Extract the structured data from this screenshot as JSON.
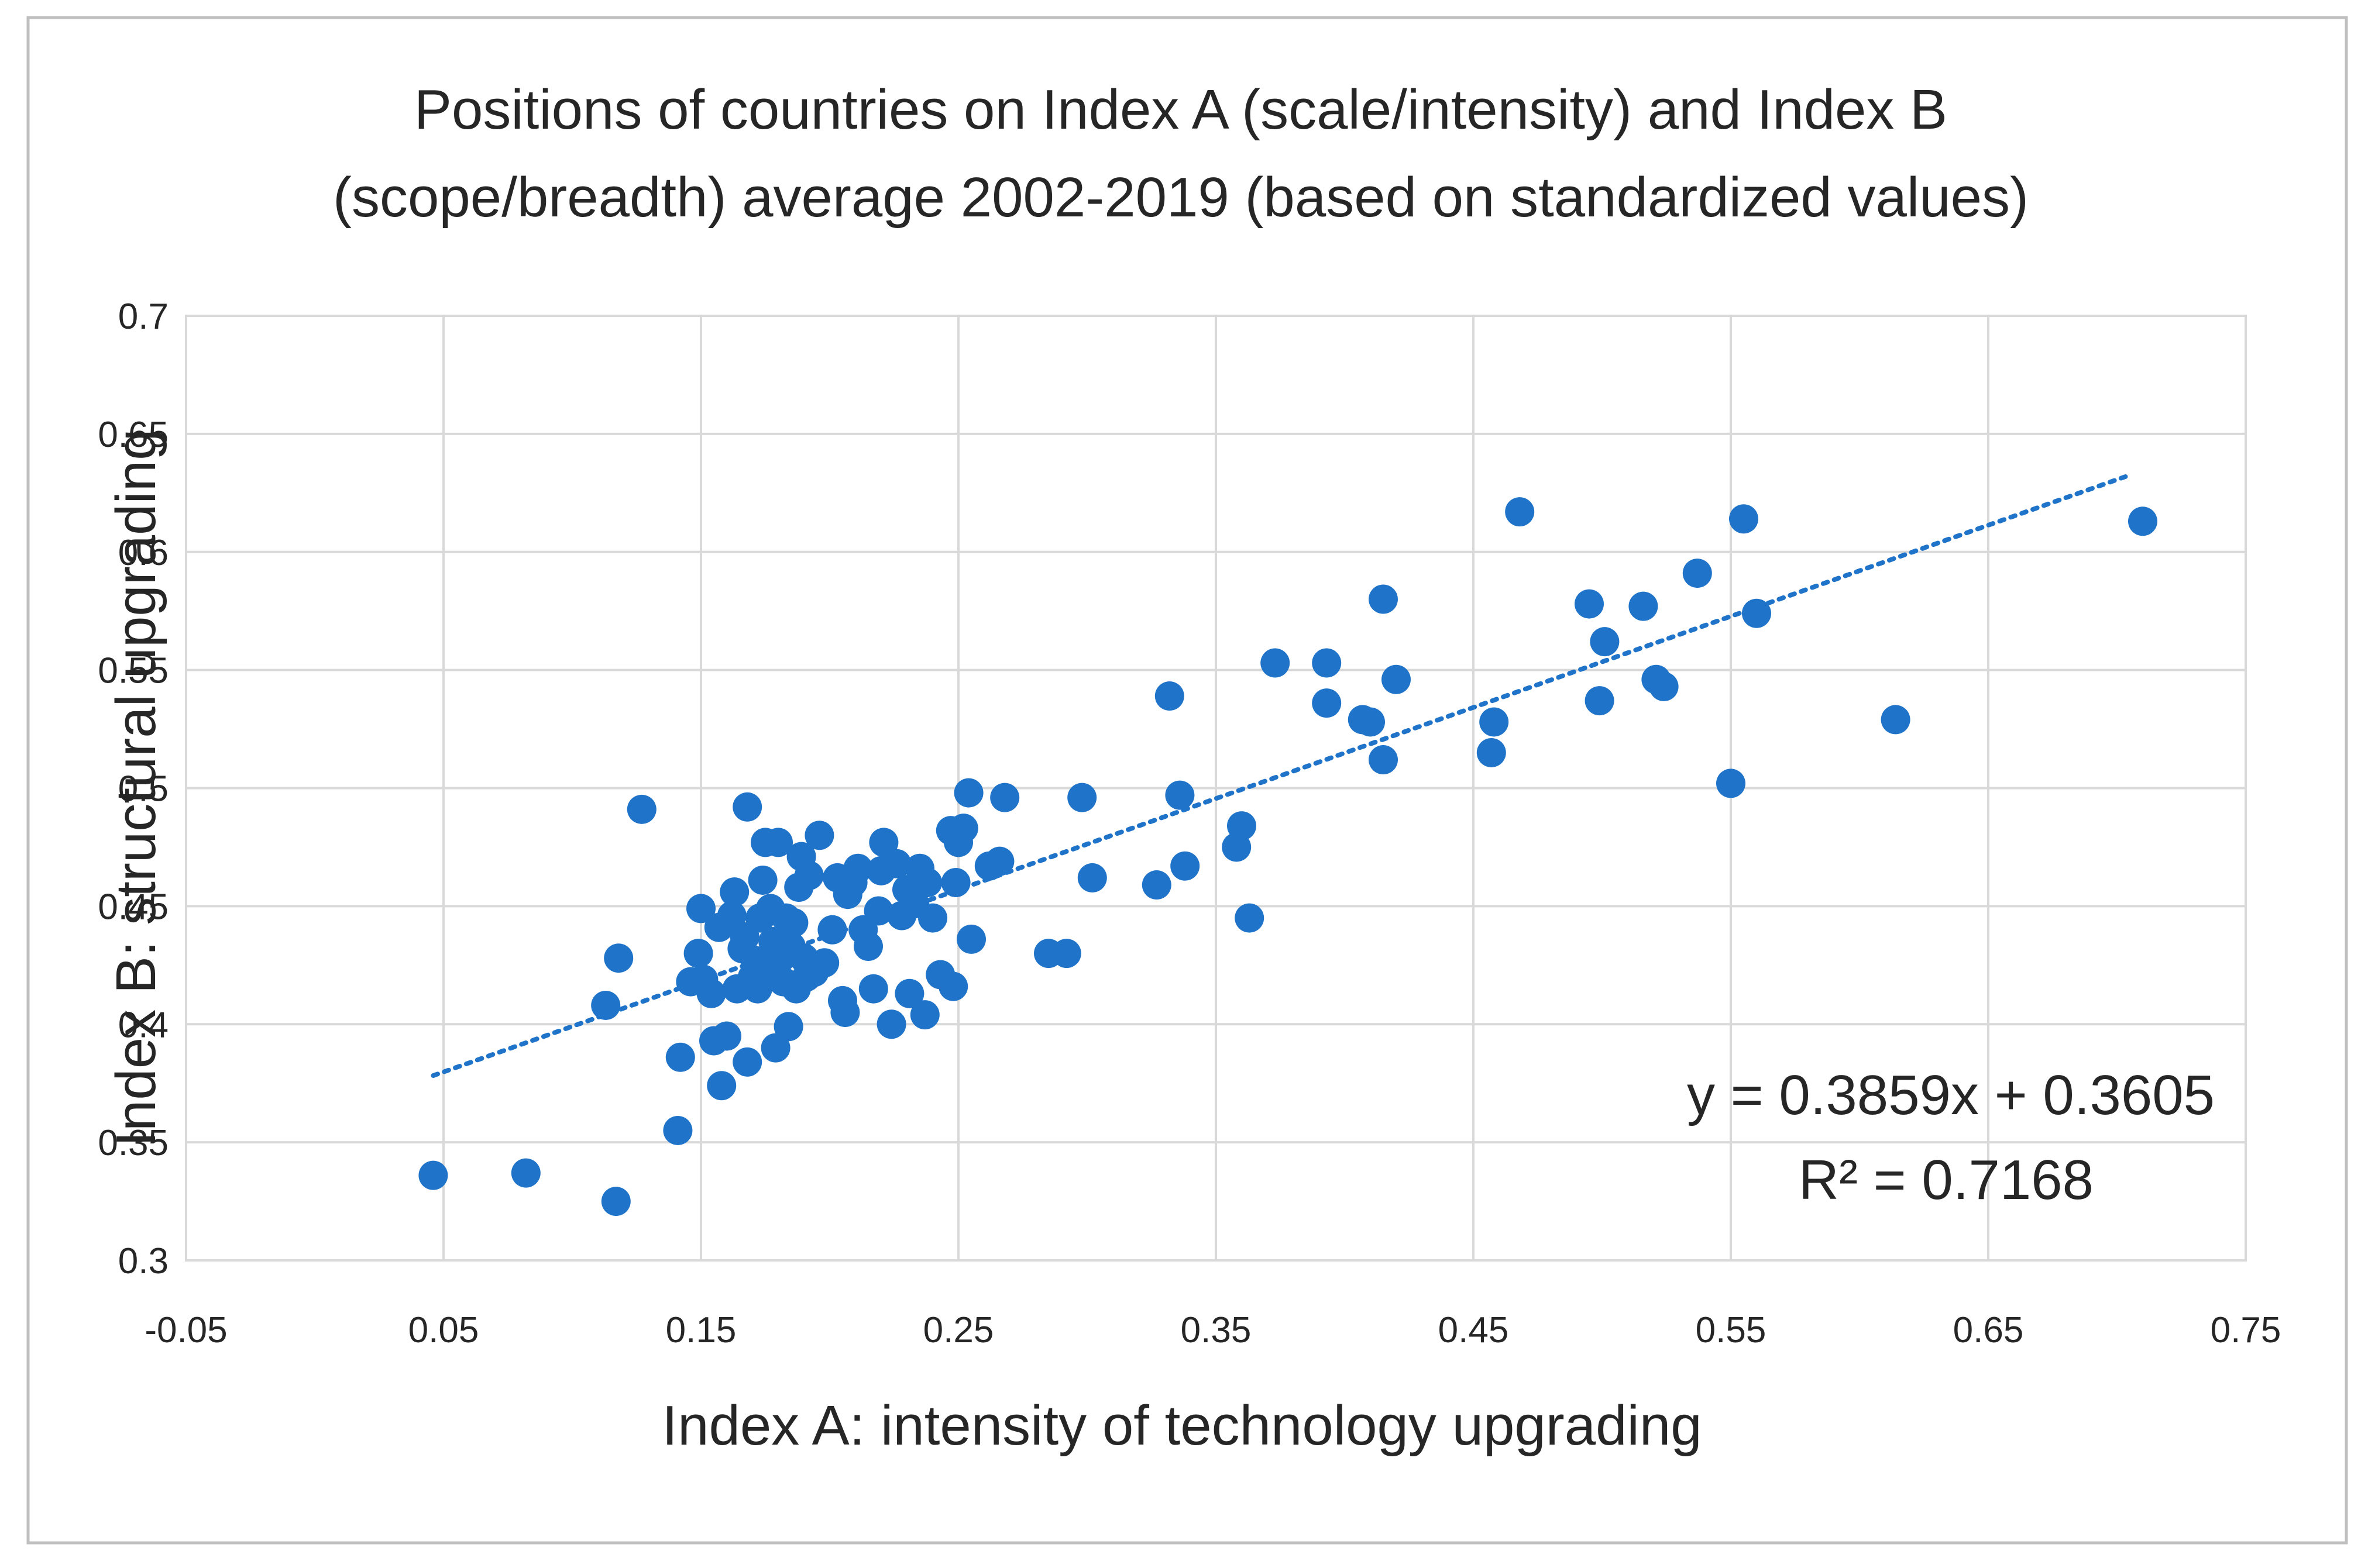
{
  "chart_data": {
    "type": "scatter",
    "title_line1": "Positions of countries on Index A (scale/intensity) and Index B",
    "title_line2": "(scope/breadth) average 2002-2019 (based on standardized values)",
    "xlabel": "Index  A: intensity of technology upgrading",
    "ylabel": "Index B: structural upgrading",
    "xlim": [
      -0.05,
      0.75
    ],
    "ylim": [
      0.3,
      0.7
    ],
    "x_ticks": [
      -0.05,
      0.05,
      0.15,
      0.25,
      0.35,
      0.45,
      0.55,
      0.65,
      0.75
    ],
    "x_tick_labels": [
      "-0.05",
      "0.05",
      "0.15",
      "0.25",
      "0.35",
      "0.45",
      "0.55",
      "0.65",
      "0.75"
    ],
    "y_ticks": [
      0.3,
      0.35,
      0.4,
      0.45,
      0.5,
      0.55,
      0.6,
      0.65,
      0.7
    ],
    "y_tick_labels": [
      "0.3",
      "0.35",
      "0.4",
      "0.45",
      "0.5",
      "0.55",
      "0.6",
      "0.65",
      "0.7"
    ],
    "grid": true,
    "series": [
      {
        "name": "Countries",
        "color": "#1f73c8",
        "points": [
          [
            0.046,
            0.336
          ],
          [
            0.082,
            0.337
          ],
          [
            0.117,
            0.325
          ],
          [
            0.113,
            0.408
          ],
          [
            0.118,
            0.428
          ],
          [
            0.127,
            0.491
          ],
          [
            0.141,
            0.355
          ],
          [
            0.142,
            0.386
          ],
          [
            0.146,
            0.418
          ],
          [
            0.149,
            0.43
          ],
          [
            0.15,
            0.449
          ],
          [
            0.151,
            0.419
          ],
          [
            0.154,
            0.413
          ],
          [
            0.155,
            0.393
          ],
          [
            0.157,
            0.441
          ],
          [
            0.158,
            0.374
          ],
          [
            0.16,
            0.395
          ],
          [
            0.162,
            0.446
          ],
          [
            0.163,
            0.456
          ],
          [
            0.164,
            0.415
          ],
          [
            0.166,
            0.432
          ],
          [
            0.167,
            0.437
          ],
          [
            0.168,
            0.384
          ],
          [
            0.168,
            0.492
          ],
          [
            0.17,
            0.42
          ],
          [
            0.171,
            0.427
          ],
          [
            0.172,
            0.415
          ],
          [
            0.173,
            0.445
          ],
          [
            0.174,
            0.461
          ],
          [
            0.175,
            0.477
          ],
          [
            0.176,
            0.421
          ],
          [
            0.177,
            0.449
          ],
          [
            0.178,
            0.435
          ],
          [
            0.179,
            0.39
          ],
          [
            0.18,
            0.477
          ],
          [
            0.181,
            0.428
          ],
          [
            0.182,
            0.418
          ],
          [
            0.183,
            0.445
          ],
          [
            0.184,
            0.399
          ],
          [
            0.185,
            0.433
          ],
          [
            0.186,
            0.443
          ],
          [
            0.187,
            0.415
          ],
          [
            0.188,
            0.458
          ],
          [
            0.189,
            0.471
          ],
          [
            0.19,
            0.428
          ],
          [
            0.191,
            0.42
          ],
          [
            0.192,
            0.463
          ],
          [
            0.194,
            0.422
          ],
          [
            0.196,
            0.48
          ],
          [
            0.198,
            0.426
          ],
          [
            0.201,
            0.44
          ],
          [
            0.203,
            0.462
          ],
          [
            0.205,
            0.41
          ],
          [
            0.206,
            0.405
          ],
          [
            0.207,
            0.455
          ],
          [
            0.209,
            0.46
          ],
          [
            0.211,
            0.466
          ],
          [
            0.213,
            0.44
          ],
          [
            0.215,
            0.433
          ],
          [
            0.217,
            0.415
          ],
          [
            0.219,
            0.448
          ],
          [
            0.22,
            0.465
          ],
          [
            0.221,
            0.477
          ],
          [
            0.224,
            0.4
          ],
          [
            0.226,
            0.468
          ],
          [
            0.228,
            0.446
          ],
          [
            0.23,
            0.457
          ],
          [
            0.231,
            0.413
          ],
          [
            0.233,
            0.451
          ],
          [
            0.235,
            0.466
          ],
          [
            0.237,
            0.404
          ],
          [
            0.238,
            0.46
          ],
          [
            0.24,
            0.445
          ],
          [
            0.243,
            0.421
          ],
          [
            0.247,
            0.482
          ],
          [
            0.248,
            0.416
          ],
          [
            0.25,
            0.477
          ],
          [
            0.252,
            0.483
          ],
          [
            0.254,
            0.498
          ],
          [
            0.255,
            0.436
          ],
          [
            0.249,
            0.46
          ],
          [
            0.262,
            0.467
          ],
          [
            0.266,
            0.469
          ],
          [
            0.268,
            0.496
          ],
          [
            0.285,
            0.43
          ],
          [
            0.292,
            0.43
          ],
          [
            0.298,
            0.496
          ],
          [
            0.302,
            0.462
          ],
          [
            0.327,
            0.459
          ],
          [
            0.332,
            0.539
          ],
          [
            0.336,
            0.497
          ],
          [
            0.338,
            0.467
          ],
          [
            0.358,
            0.475
          ],
          [
            0.36,
            0.484
          ],
          [
            0.363,
            0.445
          ],
          [
            0.373,
            0.553
          ],
          [
            0.393,
            0.553
          ],
          [
            0.393,
            0.536
          ],
          [
            0.407,
            0.529
          ],
          [
            0.41,
            0.528
          ],
          [
            0.415,
            0.58
          ],
          [
            0.415,
            0.512
          ],
          [
            0.42,
            0.546
          ],
          [
            0.458,
            0.528
          ],
          [
            0.457,
            0.515
          ],
          [
            0.468,
            0.617
          ],
          [
            0.495,
            0.578
          ],
          [
            0.499,
            0.537
          ],
          [
            0.501,
            0.562
          ],
          [
            0.516,
            0.577
          ],
          [
            0.521,
            0.546
          ],
          [
            0.524,
            0.543
          ],
          [
            0.537,
            0.591
          ],
          [
            0.55,
            0.502
          ],
          [
            0.555,
            0.614
          ],
          [
            0.56,
            0.574
          ],
          [
            0.614,
            0.529
          ],
          [
            0.71,
            0.613
          ]
        ]
      }
    ],
    "trendline": {
      "type": "linear",
      "slope": 0.3859,
      "intercept": 0.3605,
      "x_range": [
        0.046,
        0.705
      ],
      "equation_label": "y = 0.3859x + 0.3605",
      "r2_label": "R² = 0.7168"
    },
    "legend": "none"
  }
}
